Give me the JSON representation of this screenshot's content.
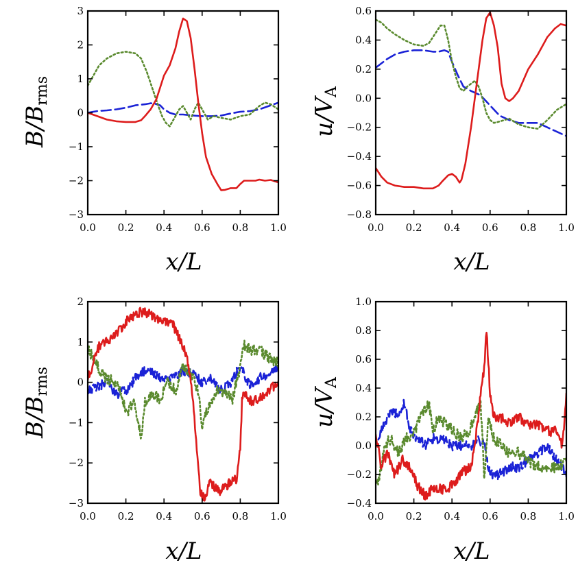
{
  "chart_data": [
    {
      "type": "line",
      "xlabel": "x/L",
      "ylabel_main": "B/B",
      "ylabel_sub": "rms",
      "xlim": [
        0,
        1
      ],
      "ylim": [
        -3,
        3
      ],
      "xticks": [
        "0.0",
        "0.2",
        "0.4",
        "0.6",
        "0.8",
        "1.0"
      ],
      "xtick_values": [
        0,
        0.2,
        0.4,
        0.6,
        0.8,
        1.0
      ],
      "yticks": [
        "−3",
        "−2",
        "−1",
        "0",
        "1",
        "2",
        "3"
      ],
      "ytick_values": [
        -3,
        -2,
        -1,
        0,
        1,
        2,
        3
      ],
      "noisy": false,
      "series": [
        {
          "color": "#dd1c1c",
          "style": "solid",
          "x": [
            0,
            0.05,
            0.1,
            0.15,
            0.2,
            0.25,
            0.28,
            0.3,
            0.33,
            0.36,
            0.4,
            0.43,
            0.46,
            0.48,
            0.5,
            0.52,
            0.54,
            0.56,
            0.58,
            0.6,
            0.62,
            0.65,
            0.68,
            0.7,
            0.72,
            0.75,
            0.78,
            0.8,
            0.82,
            0.85,
            0.88,
            0.9,
            0.93,
            0.96,
            1.0
          ],
          "y": [
            0,
            -0.1,
            -0.2,
            -0.25,
            -0.27,
            -0.27,
            -0.22,
            -0.1,
            0.1,
            0.4,
            1.1,
            1.4,
            1.9,
            2.4,
            2.78,
            2.7,
            2.2,
            1.3,
            0.3,
            -0.6,
            -1.3,
            -1.8,
            -2.1,
            -2.28,
            -2.27,
            -2.22,
            -2.22,
            -2.1,
            -2.0,
            -2.0,
            -2.0,
            -1.97,
            -2.0,
            -1.98,
            -2.05
          ]
        },
        {
          "color": "#5a8a2e",
          "style": "dotted",
          "x": [
            0,
            0.03,
            0.06,
            0.1,
            0.15,
            0.2,
            0.25,
            0.28,
            0.31,
            0.34,
            0.37,
            0.39,
            0.41,
            0.43,
            0.45,
            0.48,
            0.5,
            0.52,
            0.54,
            0.56,
            0.58,
            0.6,
            0.63,
            0.66,
            0.7,
            0.75,
            0.8,
            0.85,
            0.9,
            0.93,
            0.96,
            1.0
          ],
          "y": [
            0.8,
            1.1,
            1.4,
            1.6,
            1.75,
            1.8,
            1.75,
            1.6,
            1.2,
            0.7,
            0.2,
            -0.1,
            -0.3,
            -0.4,
            -0.2,
            0.1,
            0.2,
            0.0,
            -0.2,
            0.1,
            0.3,
            0.1,
            -0.2,
            -0.1,
            -0.15,
            -0.2,
            -0.1,
            -0.05,
            0.2,
            0.3,
            0.25,
            0.1
          ]
        },
        {
          "color": "#1a22d6",
          "style": "dashed",
          "x": [
            0,
            0.05,
            0.1,
            0.15,
            0.2,
            0.25,
            0.3,
            0.33,
            0.35,
            0.38,
            0.4,
            0.43,
            0.46,
            0.5,
            0.55,
            0.6,
            0.65,
            0.7,
            0.75,
            0.8,
            0.85,
            0.9,
            0.95,
            1.0
          ],
          "y": [
            0,
            0.05,
            0.07,
            0.1,
            0.15,
            0.22,
            0.25,
            0.28,
            0.27,
            0.22,
            0.1,
            0.0,
            -0.05,
            -0.05,
            -0.08,
            -0.1,
            -0.1,
            -0.08,
            -0.02,
            0.03,
            0.05,
            0.1,
            0.2,
            0.3
          ]
        }
      ]
    },
    {
      "type": "line",
      "xlabel": "x/L",
      "ylabel_main": "u/V",
      "ylabel_sub": "A",
      "xlim": [
        0,
        1
      ],
      "ylim": [
        -0.8,
        0.6
      ],
      "xticks": [
        "0.0",
        "0.2",
        "0.4",
        "0.6",
        "0.8",
        "1.0"
      ],
      "xtick_values": [
        0,
        0.2,
        0.4,
        0.6,
        0.8,
        1.0
      ],
      "yticks": [
        "−0.8",
        "−0.6",
        "−0.4",
        "−0.2",
        "0.0",
        "0.2",
        "0.4",
        "0.6"
      ],
      "ytick_values": [
        -0.8,
        -0.6,
        -0.4,
        -0.2,
        0,
        0.2,
        0.4,
        0.6
      ],
      "noisy": false,
      "series": [
        {
          "color": "#dd1c1c",
          "style": "solid",
          "x": [
            0,
            0.03,
            0.06,
            0.1,
            0.15,
            0.2,
            0.25,
            0.3,
            0.33,
            0.35,
            0.38,
            0.4,
            0.42,
            0.44,
            0.45,
            0.47,
            0.5,
            0.53,
            0.56,
            0.58,
            0.6,
            0.62,
            0.64,
            0.66,
            0.68,
            0.7,
            0.72,
            0.75,
            0.8,
            0.85,
            0.9,
            0.94,
            0.97,
            1.0
          ],
          "y": [
            -0.48,
            -0.54,
            -0.58,
            -0.6,
            -0.61,
            -0.61,
            -0.62,
            -0.62,
            -0.6,
            -0.57,
            -0.53,
            -0.52,
            -0.54,
            -0.58,
            -0.56,
            -0.45,
            -0.2,
            0.1,
            0.4,
            0.55,
            0.59,
            0.5,
            0.35,
            0.1,
            0.0,
            -0.02,
            0.0,
            0.05,
            0.2,
            0.3,
            0.42,
            0.48,
            0.51,
            0.5
          ]
        },
        {
          "color": "#5a8a2e",
          "style": "dotted",
          "x": [
            0,
            0.03,
            0.06,
            0.1,
            0.15,
            0.2,
            0.25,
            0.28,
            0.31,
            0.34,
            0.36,
            0.38,
            0.4,
            0.42,
            0.44,
            0.46,
            0.48,
            0.5,
            0.52,
            0.54,
            0.56,
            0.58,
            0.6,
            0.62,
            0.65,
            0.7,
            0.75,
            0.8,
            0.85,
            0.9,
            0.95,
            1.0
          ],
          "y": [
            0.54,
            0.52,
            0.48,
            0.44,
            0.4,
            0.37,
            0.36,
            0.38,
            0.44,
            0.5,
            0.5,
            0.4,
            0.25,
            0.15,
            0.07,
            0.05,
            0.08,
            0.1,
            0.12,
            0.08,
            0.0,
            -0.1,
            -0.15,
            -0.17,
            -0.16,
            -0.14,
            -0.18,
            -0.2,
            -0.21,
            -0.15,
            -0.08,
            -0.04
          ]
        },
        {
          "color": "#1a22d6",
          "style": "dashed",
          "x": [
            0,
            0.03,
            0.06,
            0.1,
            0.15,
            0.2,
            0.25,
            0.3,
            0.33,
            0.36,
            0.38,
            0.4,
            0.43,
            0.46,
            0.5,
            0.55,
            0.6,
            0.65,
            0.7,
            0.75,
            0.8,
            0.85,
            0.9,
            0.95,
            1.0
          ],
          "y": [
            0.21,
            0.24,
            0.27,
            0.3,
            0.32,
            0.33,
            0.33,
            0.32,
            0.32,
            0.33,
            0.32,
            0.25,
            0.16,
            0.08,
            0.05,
            0.02,
            -0.05,
            -0.12,
            -0.15,
            -0.17,
            -0.17,
            -0.17,
            -0.2,
            -0.23,
            -0.26
          ]
        }
      ]
    },
    {
      "type": "line",
      "xlabel": "x/L",
      "ylabel_main": "B/B",
      "ylabel_sub": "rms",
      "xlim": [
        0,
        1
      ],
      "ylim": [
        -3,
        2
      ],
      "xticks": [
        "0.0",
        "0.2",
        "0.4",
        "0.6",
        "0.8",
        "1.0"
      ],
      "xtick_values": [
        0,
        0.2,
        0.4,
        0.6,
        0.8,
        1.0
      ],
      "yticks": [
        "−3",
        "−2",
        "−1",
        "0",
        "1",
        "2"
      ],
      "ytick_values": [
        -3,
        -2,
        -1,
        0,
        1,
        2
      ],
      "noisy": true,
      "series": [
        {
          "color": "#dd1c1c",
          "style": "solid",
          "noise": 0.12,
          "x": [
            0,
            0.03,
            0.06,
            0.1,
            0.15,
            0.2,
            0.25,
            0.28,
            0.32,
            0.36,
            0.4,
            0.45,
            0.5,
            0.53,
            0.55,
            0.57,
            0.59,
            0.61,
            0.64,
            0.67,
            0.7,
            0.74,
            0.78,
            0.8,
            0.81,
            0.83,
            0.86,
            0.9,
            0.95,
            1.0
          ],
          "y": [
            0.1,
            0.5,
            0.9,
            1.0,
            1.2,
            1.5,
            1.65,
            1.75,
            1.7,
            1.6,
            1.5,
            1.4,
            0.9,
            0.4,
            -0.3,
            -1.6,
            -2.7,
            -2.9,
            -2.5,
            -2.6,
            -2.7,
            -2.5,
            -2.4,
            -1.6,
            -0.4,
            -0.3,
            -0.5,
            -0.4,
            -0.2,
            0.0
          ]
        },
        {
          "color": "#5a8a2e",
          "style": "dotted",
          "noise": 0.14,
          "x": [
            0,
            0.03,
            0.06,
            0.1,
            0.14,
            0.18,
            0.2,
            0.24,
            0.28,
            0.3,
            0.34,
            0.38,
            0.42,
            0.46,
            0.5,
            0.54,
            0.58,
            0.6,
            0.62,
            0.65,
            0.68,
            0.72,
            0.76,
            0.8,
            0.82,
            0.86,
            0.9,
            0.95,
            1.0
          ],
          "y": [
            0.8,
            0.6,
            0.3,
            0.1,
            0.0,
            -0.3,
            -0.8,
            -0.5,
            -1.3,
            -0.5,
            -0.3,
            -0.4,
            0.0,
            -0.2,
            0.4,
            0.2,
            -0.2,
            -1.1,
            -0.7,
            -0.5,
            -0.2,
            -0.3,
            -0.4,
            0.4,
            0.9,
            0.8,
            0.8,
            0.6,
            0.5
          ]
        },
        {
          "color": "#1a22d6",
          "style": "dashed",
          "noise": 0.12,
          "x": [
            0,
            0.05,
            0.1,
            0.15,
            0.2,
            0.25,
            0.3,
            0.35,
            0.4,
            0.45,
            0.5,
            0.55,
            0.6,
            0.65,
            0.7,
            0.75,
            0.8,
            0.85,
            0.9,
            0.95,
            1.0
          ],
          "y": [
            -0.2,
            -0.1,
            0.0,
            -0.3,
            -0.2,
            0.1,
            0.3,
            0.2,
            0.1,
            0.1,
            0.3,
            0.2,
            0.0,
            0.1,
            -0.2,
            0.0,
            0.4,
            -0.1,
            0.1,
            0.2,
            0.4
          ]
        }
      ]
    },
    {
      "type": "line",
      "xlabel": "x/L",
      "ylabel_main": "u/V",
      "ylabel_sub": "A",
      "xlim": [
        0,
        1
      ],
      "ylim": [
        -0.4,
        1.0
      ],
      "xticks": [
        "0.0",
        "0.2",
        "0.4",
        "0.6",
        "0.8",
        "1.0"
      ],
      "xtick_values": [
        0,
        0.2,
        0.4,
        0.6,
        0.8,
        1.0
      ],
      "yticks": [
        "−0.4",
        "−0.2",
        "0.0",
        "0.2",
        "0.4",
        "0.6",
        "0.8",
        "1.0"
      ],
      "ytick_values": [
        -0.4,
        -0.2,
        0,
        0.2,
        0.4,
        0.6,
        0.8,
        1.0
      ],
      "noisy": true,
      "series": [
        {
          "color": "#dd1c1c",
          "style": "solid",
          "noise": 0.035,
          "x": [
            0,
            0.03,
            0.06,
            0.1,
            0.14,
            0.18,
            0.22,
            0.26,
            0.3,
            0.34,
            0.38,
            0.42,
            0.46,
            0.5,
            0.53,
            0.55,
            0.57,
            0.58,
            0.59,
            0.6,
            0.62,
            0.65,
            0.7,
            0.75,
            0.8,
            0.85,
            0.9,
            0.95,
            0.98,
            1.0
          ],
          "y": [
            0.1,
            -0.15,
            -0.05,
            -0.2,
            -0.1,
            -0.15,
            -0.28,
            -0.35,
            -0.3,
            -0.3,
            -0.3,
            -0.25,
            -0.18,
            -0.15,
            0.1,
            0.35,
            0.55,
            0.8,
            0.6,
            0.35,
            0.2,
            0.2,
            0.15,
            0.2,
            0.15,
            0.15,
            0.1,
            0.1,
            0.0,
            0.35
          ]
        },
        {
          "color": "#5a8a2e",
          "style": "dotted",
          "noise": 0.04,
          "x": [
            0,
            0.02,
            0.05,
            0.08,
            0.12,
            0.16,
            0.2,
            0.24,
            0.28,
            0.3,
            0.33,
            0.37,
            0.41,
            0.45,
            0.49,
            0.52,
            0.55,
            0.57,
            0.59,
            0.62,
            0.66,
            0.7,
            0.75,
            0.8,
            0.85,
            0.9,
            0.95,
            1.0
          ],
          "y": [
            -0.3,
            -0.2,
            0.0,
            0.05,
            -0.05,
            0.05,
            0.1,
            0.2,
            0.3,
            0.1,
            0.2,
            0.15,
            0.1,
            0.05,
            0.1,
            0.2,
            0.3,
            -0.25,
            0.2,
            0.05,
            0.0,
            -0.05,
            -0.05,
            -0.1,
            -0.15,
            -0.15,
            -0.15,
            -0.1
          ]
        },
        {
          "color": "#1a22d6",
          "style": "dashed",
          "noise": 0.035,
          "x": [
            0,
            0.03,
            0.06,
            0.09,
            0.12,
            0.15,
            0.18,
            0.22,
            0.26,
            0.3,
            0.35,
            0.4,
            0.45,
            0.5,
            0.54,
            0.57,
            0.6,
            0.65,
            0.7,
            0.75,
            0.8,
            0.85,
            0.9,
            0.95,
            1.0
          ],
          "y": [
            0.0,
            0.1,
            0.2,
            0.25,
            0.2,
            0.3,
            0.1,
            0.05,
            0.0,
            0.05,
            0.05,
            0.0,
            0.0,
            0.0,
            0.05,
            0.0,
            -0.2,
            -0.2,
            -0.15,
            -0.15,
            -0.1,
            -0.05,
            0.0,
            -0.1,
            -0.2
          ]
        }
      ]
    }
  ]
}
